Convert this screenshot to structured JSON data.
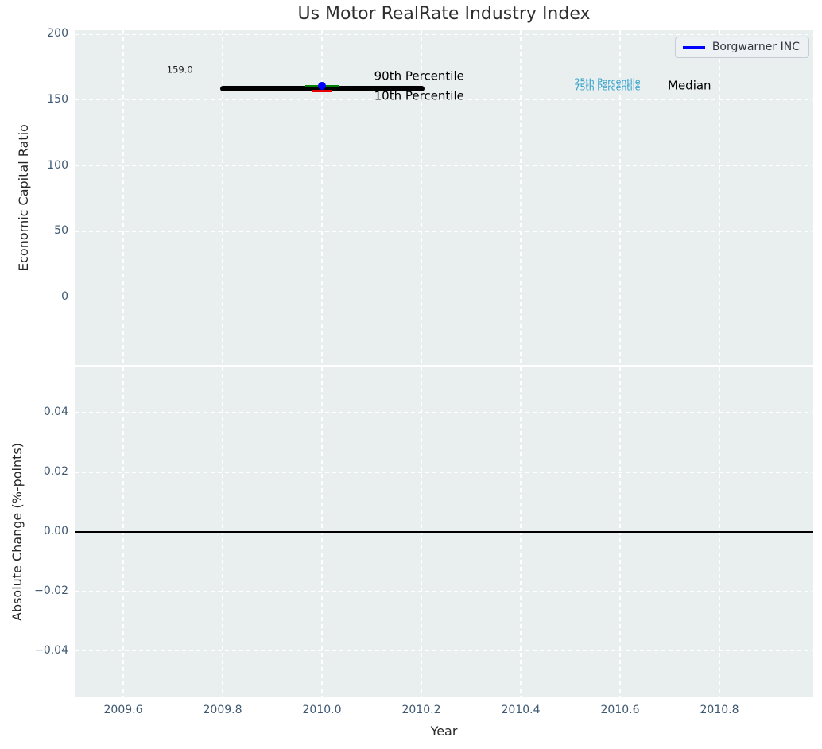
{
  "figure": {
    "title": "Us Motor RealRate Industry Index",
    "background": "#ffffff",
    "axes_background": "#e9eeef",
    "grid_color": "#ffffff",
    "tick_label_color": "#3e5871",
    "text_color": "#262626"
  },
  "legend": {
    "position": "upper right",
    "entries": [
      {
        "label": "Borgwarner INC",
        "color": "#0000ff"
      }
    ]
  },
  "chart_data": [
    {
      "id": "economic-capital-ratio",
      "type": "line",
      "title": "Us Motor RealRate Industry Index",
      "xlabel": "",
      "ylabel": "Economic Capital Ratio",
      "xlim": [
        2009.5024,
        2010.9888
      ],
      "ylim": [
        -51.6,
        203.2
      ],
      "grid": true,
      "xticks": [
        2009.6,
        2009.8,
        2010.0,
        2010.2,
        2010.4,
        2010.6,
        2010.8
      ],
      "xtick_labels": [],
      "yticks": [
        0,
        50,
        100,
        150,
        200
      ],
      "ytick_labels": [
        "0",
        "50",
        "100",
        "150",
        "200"
      ],
      "legend_position": "upper right",
      "series": [
        {
          "name": "25th-75th Percentile",
          "color": "#9fd0e8",
          "linewidth": 2,
          "cap": "round",
          "x": [
            2009.85,
            2010.15
          ],
          "y": [
            158.2,
            158.2
          ]
        },
        {
          "name": "Median",
          "color": "#000000",
          "linewidth": 7,
          "cap": "round",
          "x": [
            2009.8,
            2010.2
          ],
          "y": [
            159.0,
            159.0
          ]
        },
        {
          "name": "90th Percentile",
          "color": "#008000",
          "linewidth": 3.5,
          "cap": "butt",
          "x": [
            2009.966,
            2010.034
          ],
          "y": [
            160.6,
            160.6
          ]
        },
        {
          "name": "10th Percentile",
          "color": "#e60000",
          "linewidth": 3,
          "cap": "butt",
          "x": [
            2009.98,
            2010.02
          ],
          "y": [
            157.0,
            157.0
          ]
        },
        {
          "name": "Borgwarner INC",
          "color": "#0000ff",
          "marker": "circle",
          "marker_size": 10,
          "x": [
            2010.0
          ],
          "y": [
            160.8
          ]
        }
      ],
      "annotations": [
        {
          "text": "159.0",
          "x": 2009.714,
          "y": 173.0,
          "color": "#1a1a1a",
          "size": 11.5,
          "anchor": "center"
        },
        {
          "text": "90th Percentile",
          "x": 2010.105,
          "y": 168.0,
          "color": "#000000",
          "size": 15,
          "anchor": "left"
        },
        {
          "text": "10th Percentile",
          "x": 2010.105,
          "y": 153.2,
          "color": "#000000",
          "size": 15,
          "anchor": "left"
        },
        {
          "text": "25th Percentile",
          "x": 2010.508,
          "y": 163.3,
          "color": "#2b9ec9",
          "size": 11,
          "anchor": "left"
        },
        {
          "text": "75th Percentile",
          "x": 2010.508,
          "y": 158.9,
          "color": "#2b9ec9",
          "size": 11,
          "anchor": "left"
        },
        {
          "text": "Median",
          "x": 2010.696,
          "y": 160.8,
          "color": "#000000",
          "size": 15,
          "anchor": "left"
        }
      ]
    },
    {
      "id": "absolute-change",
      "type": "line",
      "title": "",
      "xlabel": "Year",
      "ylabel": "Absolute Change (%-points)",
      "xlim": [
        2009.5024,
        2010.9888
      ],
      "ylim": [
        -0.0555,
        0.0555
      ],
      "grid": true,
      "xticks": [
        2009.6,
        2009.8,
        2010.0,
        2010.2,
        2010.4,
        2010.6,
        2010.8
      ],
      "xtick_labels": [
        "2009.6",
        "2009.8",
        "2010.0",
        "2010.2",
        "2010.4",
        "2010.6",
        "2010.8"
      ],
      "yticks": [
        0.04,
        0.02,
        0.0,
        -0.02,
        -0.04
      ],
      "ytick_labels": [
        "0.04",
        "0.02",
        "0.00",
        "−0.02",
        "−0.04"
      ],
      "series": [
        {
          "name": "zero-line",
          "color": "#000000",
          "linewidth": 1.8,
          "cap": "butt",
          "x": [
            2009.5024,
            2010.9888
          ],
          "y": [
            0,
            0
          ]
        }
      ],
      "annotations": []
    }
  ]
}
